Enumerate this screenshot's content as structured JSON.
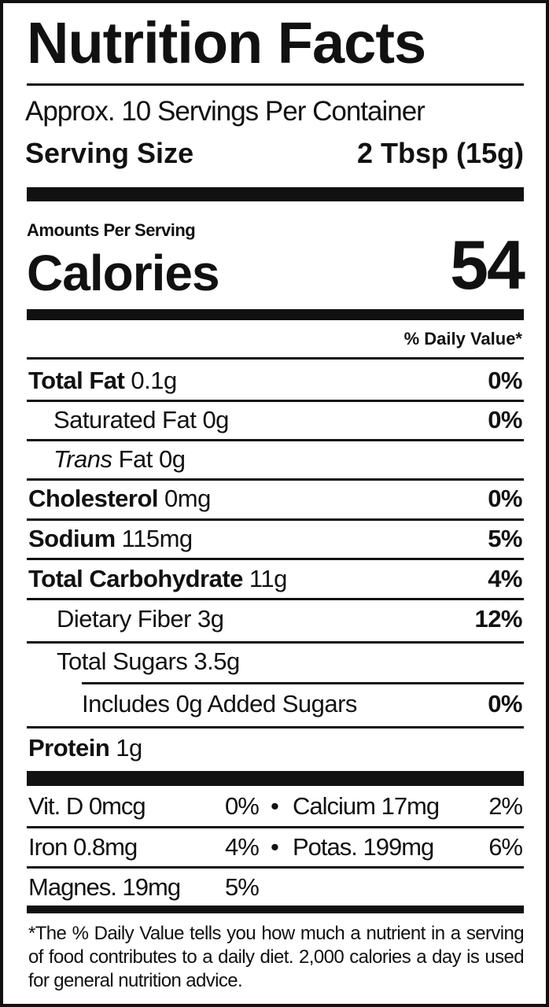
{
  "title": "Nutrition Facts",
  "servings_per_container": "Approx. 10 Servings Per Container",
  "serving_size": {
    "label": "Serving Size",
    "value": "2 Tbsp (15g)"
  },
  "amounts_per_serving": "Amounts Per Serving",
  "calories": {
    "label": "Calories",
    "value": "54"
  },
  "daily_value_header": "% Daily Value*",
  "nutrients": [
    {
      "label": "Total Fat",
      "amount": "0.1g",
      "dv": "0%"
    },
    {
      "label": "Saturated Fat 0g",
      "dv": "0%"
    },
    {
      "label_italic": "Trans",
      "label": " Fat 0g"
    },
    {
      "label": "Cholesterol",
      "amount": "0mg",
      "dv": "0%"
    },
    {
      "label": "Sodium",
      "amount": "115mg",
      "dv": "5%"
    },
    {
      "label": "Total Carbohydrate",
      "amount": "11g",
      "dv": "4%"
    },
    {
      "label": "Dietary Fiber 3g",
      "dv": "12%"
    },
    {
      "label": "Total Sugars 3.5g"
    },
    {
      "label": "Includes 0g Added Sugars",
      "dv": "0%"
    },
    {
      "label": "Protein",
      "amount": "1g"
    }
  ],
  "vitamins": [
    {
      "left": "Vit. D 0mcg",
      "left_dv": "0%",
      "bullet": "•",
      "right": "Calcium 17mg",
      "right_dv": "2%"
    },
    {
      "left": "Iron 0.8mg",
      "left_dv": "4%",
      "bullet": "•",
      "right": "Potas. 199mg",
      "right_dv": "6%"
    },
    {
      "left": "Magnes. 19mg",
      "left_dv": "5%"
    }
  ],
  "footnote": "*The % Daily Value tells you how much a nutrient in a serving of food contributes to a daily diet. 2,000 calories a day is used for general nutrition advice."
}
